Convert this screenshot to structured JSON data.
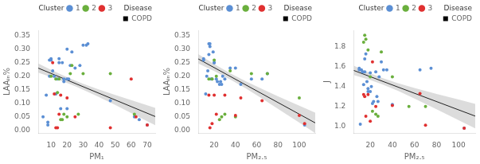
{
  "chart_data": [
    {
      "type": "scatter",
      "x_label": "PM₁",
      "y_label": "LAAᵢₙ%",
      "xlim": [
        2,
        75
      ],
      "ylim": [
        -0.01,
        0.37
      ],
      "xticks": [
        10,
        20,
        30,
        40,
        50,
        60,
        70
      ],
      "yticks": [
        {
          "value": 0.0,
          "label": "0.00"
        },
        0.05,
        {
          "value": 0.1,
          "label": "0.10"
        },
        0.15,
        {
          "value": 0.2,
          "label": "0.20"
        },
        0.25,
        {
          "value": 0.3,
          "label": "0.30"
        },
        0.35
      ],
      "grid": false,
      "legend": "upper right",
      "series": [
        {
          "name": "1",
          "color": "#5B8FD4",
          "marker": "circle",
          "x": [
            5,
            7,
            8,
            8,
            9,
            9,
            10,
            10,
            11,
            12,
            13,
            14,
            15,
            15,
            16,
            17,
            18,
            18,
            20,
            20,
            20,
            21,
            22,
            23,
            25,
            28,
            30,
            32,
            33,
            47,
            62,
            65,
            70
          ],
          "values": [
            0.05,
            0.13,
            0.03,
            0.02,
            0.2,
            0.26,
            0.265,
            0.26,
            0.22,
            0.2,
            0.135,
            0.19,
            0.25,
            0.265,
            0.08,
            0.25,
            0.18,
            0.19,
            0.19,
            0.08,
            0.3,
            0.19,
            0.24,
            0.29,
            0.23,
            0.24,
            0.315,
            0.315,
            0.32,
            0.11,
            0.05,
            0.04,
            0.02
          ]
        },
        {
          "name": "2",
          "color": "#6AAF3D",
          "marker": "circle",
          "x": [
            10,
            13,
            14,
            15,
            16,
            17,
            18,
            20,
            22,
            23,
            27,
            30,
            47,
            62
          ],
          "values": [
            0.2,
            0.19,
            0.14,
            0.19,
            0.04,
            0.04,
            0.06,
            0.05,
            0.21,
            0.24,
            0.06,
            0.21,
            0.21,
            0.06
          ]
        },
        {
          "name": "3",
          "color": "#E03030",
          "marker": "circle",
          "x": [
            11,
            12,
            13,
            14,
            15,
            16,
            20,
            25,
            47,
            60,
            63,
            70
          ],
          "values": [
            0.25,
            0.135,
            0.01,
            0.01,
            0.06,
            0.13,
            0.12,
            0.05,
            0.01,
            0.19,
            0.05,
            0.02
          ]
        },
        {
          "name": "COPD",
          "color": "#000000",
          "marker": "square",
          "x": [],
          "values": []
        }
      ],
      "legend_groups": [
        {
          "title": "Cluster",
          "series": [
            "1",
            "2",
            "3"
          ]
        },
        {
          "title": "Disease",
          "series": [
            "COPD"
          ]
        }
      ],
      "fit": {
        "color": "#222222",
        "x": [
          2,
          75
        ],
        "values": [
          0.2301,
          0.05125
        ]
      },
      "band": {
        "color": "#c0c0c0",
        "x": [
          2,
          10,
          20,
          25,
          30,
          40,
          50,
          60,
          70,
          75
        ],
        "lower": [
          0.2131,
          0.197,
          0.1753,
          0.1633,
          0.1505,
          0.123,
          0.0939,
          0.0642,
          0.0341,
          0.0191
        ],
        "upper": [
          0.2471,
          0.224,
          0.1967,
          0.1842,
          0.1725,
          0.1511,
          0.1311,
          0.1118,
          0.0929,
          0.0834
        ]
      }
    },
    {
      "type": "scatter",
      "x_label": "PM₂.₅",
      "y_label": "LAAᵢₙ%",
      "xlim": [
        5,
        115
      ],
      "ylim": [
        -0.01,
        0.37
      ],
      "xticks": [
        20,
        40,
        60,
        80,
        100
      ],
      "yticks": [
        {
          "value": 0.0,
          "label": "0.00"
        },
        0.05,
        {
          "value": 0.1,
          "label": "0.10"
        },
        0.15,
        {
          "value": 0.2,
          "label": "0.20"
        },
        0.25,
        {
          "value": 0.3,
          "label": "0.30"
        },
        0.35
      ],
      "grid": false,
      "legend": "upper right",
      "series": [
        {
          "name": "1",
          "color": "#5B8FD4",
          "marker": "circle",
          "x": [
            10,
            10,
            12,
            13,
            14,
            15,
            15,
            16,
            16,
            17,
            18,
            19,
            20,
            20,
            22,
            23,
            25,
            26,
            27,
            28,
            30,
            35,
            40,
            45,
            55,
            65,
            70,
            105
          ],
          "values": [
            0.265,
            0.26,
            0.135,
            0.2,
            0.22,
            0.28,
            0.32,
            0.32,
            0.31,
            0.19,
            0.19,
            0.29,
            0.25,
            0.25,
            0.19,
            0.18,
            0.17,
            0.18,
            0.17,
            0.2,
            0.19,
            0.23,
            0.23,
            0.17,
            0.19,
            0.19,
            0.21,
            0.02
          ]
        },
        {
          "name": "2",
          "color": "#6AAF3D",
          "marker": "circle",
          "x": [
            15,
            18,
            20,
            22,
            25,
            27,
            30,
            35,
            40,
            55,
            70,
            100
          ],
          "values": [
            0.19,
            0.19,
            0.26,
            0.2,
            0.04,
            0.05,
            0.06,
            0.22,
            0.05,
            0.21,
            0.21,
            0.12
          ]
        },
        {
          "name": "3",
          "color": "#E03030",
          "marker": "circle",
          "x": [
            15,
            16,
            18,
            20,
            22,
            30,
            40,
            45,
            65,
            100,
            105
          ],
          "values": [
            0.13,
            0.01,
            0.025,
            0.13,
            0.06,
            0.13,
            0.055,
            0.12,
            0.11,
            0.055,
            0.025
          ]
        },
        {
          "name": "COPD",
          "color": "#000000",
          "marker": "square",
          "x": [],
          "values": []
        }
      ],
      "legend_groups": [
        {
          "title": "Cluster",
          "series": [
            "1",
            "2",
            "3"
          ]
        },
        {
          "title": "Disease",
          "series": [
            "COPD"
          ]
        }
      ],
      "fit": {
        "color": "#222222",
        "x": [
          5,
          115
        ],
        "values": [
          0.26425,
          0.02775
        ]
      },
      "band": {
        "color": "#c0c0c0",
        "x": [
          5,
          20,
          35,
          50,
          65,
          80,
          100,
          115
        ],
        "lower": [
          0.2471,
          0.2191,
          0.1885,
          0.1543,
          0.1176,
          0.0798,
          0.0287,
          -0.0098
        ],
        "upper": [
          0.2814,
          0.2449,
          0.211,
          0.1807,
          0.1529,
          0.1262,
          0.0913,
          0.0653
        ]
      }
    },
    {
      "type": "scatter",
      "x_label": "PM₂.₅",
      "y_label": "J",
      "xlim": [
        5,
        115
      ],
      "ylim": [
        0.93,
        1.97
      ],
      "xticks": [
        20,
        40,
        60,
        80,
        100
      ],
      "yticks": [
        {
          "value": 1.0,
          "label": "1.0"
        },
        1.2,
        1.4,
        1.6,
        1.8
      ],
      "grid": false,
      "legend": "upper right",
      "series": [
        {
          "name": "1",
          "color": "#5B8FD4",
          "marker": "circle",
          "x": [
            10,
            10,
            11,
            12,
            13,
            14,
            15,
            15,
            16,
            17,
            18,
            18,
            20,
            20,
            21,
            22,
            23,
            25,
            26,
            27,
            28,
            30,
            32,
            35,
            40,
            65,
            75,
            105
          ],
          "values": [
            1.57,
            1.585,
            1.02,
            1.57,
            1.55,
            1.42,
            1.68,
            1.55,
            1.73,
            1.45,
            1.38,
            1.35,
            1.54,
            1.35,
            1.4,
            1.23,
            1.25,
            1.55,
            1.3,
            1.25,
            1.5,
            1.65,
            1.57,
            1.57,
            1.22,
            1.57,
            1.585,
            0.98
          ]
        },
        {
          "name": "2",
          "color": "#6AAF3D",
          "marker": "circle",
          "x": [
            14,
            15,
            16,
            18,
            20,
            22,
            25,
            27,
            30,
            40,
            55,
            70
          ],
          "values": [
            1.85,
            1.92,
            1.88,
            1.77,
            1.5,
            1.15,
            1.12,
            1.1,
            1.75,
            1.5,
            1.2,
            1.2
          ]
        },
        {
          "name": "3",
          "color": "#E03030",
          "marker": "circle",
          "x": [
            14,
            15,
            16,
            18,
            20,
            22,
            25,
            40,
            65,
            70,
            105
          ],
          "values": [
            1.32,
            1.3,
            1.1,
            1.32,
            1.05,
            1.65,
            1.2,
            1.21,
            1.33,
            1.01,
            0.98
          ]
        },
        {
          "name": "COPD",
          "color": "#000000",
          "marker": "square",
          "x": [],
          "values": []
        }
      ],
      "legend_groups": [
        {
          "title": "Cluster",
          "series": [
            "1",
            "2",
            "3"
          ]
        },
        {
          "title": "Disease",
          "series": [
            "COPD"
          ]
        }
      ],
      "fit": {
        "color": "#222222",
        "x": [
          5,
          115
        ],
        "values": [
          1.564,
          1.102
        ]
      },
      "band": {
        "color": "#c0c0c0",
        "x": [
          5,
          20,
          30,
          45,
          60,
          80,
          100,
          115
        ],
        "lower": [
          1.5168,
          1.4665,
          1.4275,
          1.358,
          1.2802,
          1.1717,
          1.0613,
          0.978
        ],
        "upper": [
          1.6112,
          1.5355,
          1.4905,
          1.434,
          1.3858,
          1.3263,
          1.2687,
          1.226
        ]
      }
    }
  ]
}
